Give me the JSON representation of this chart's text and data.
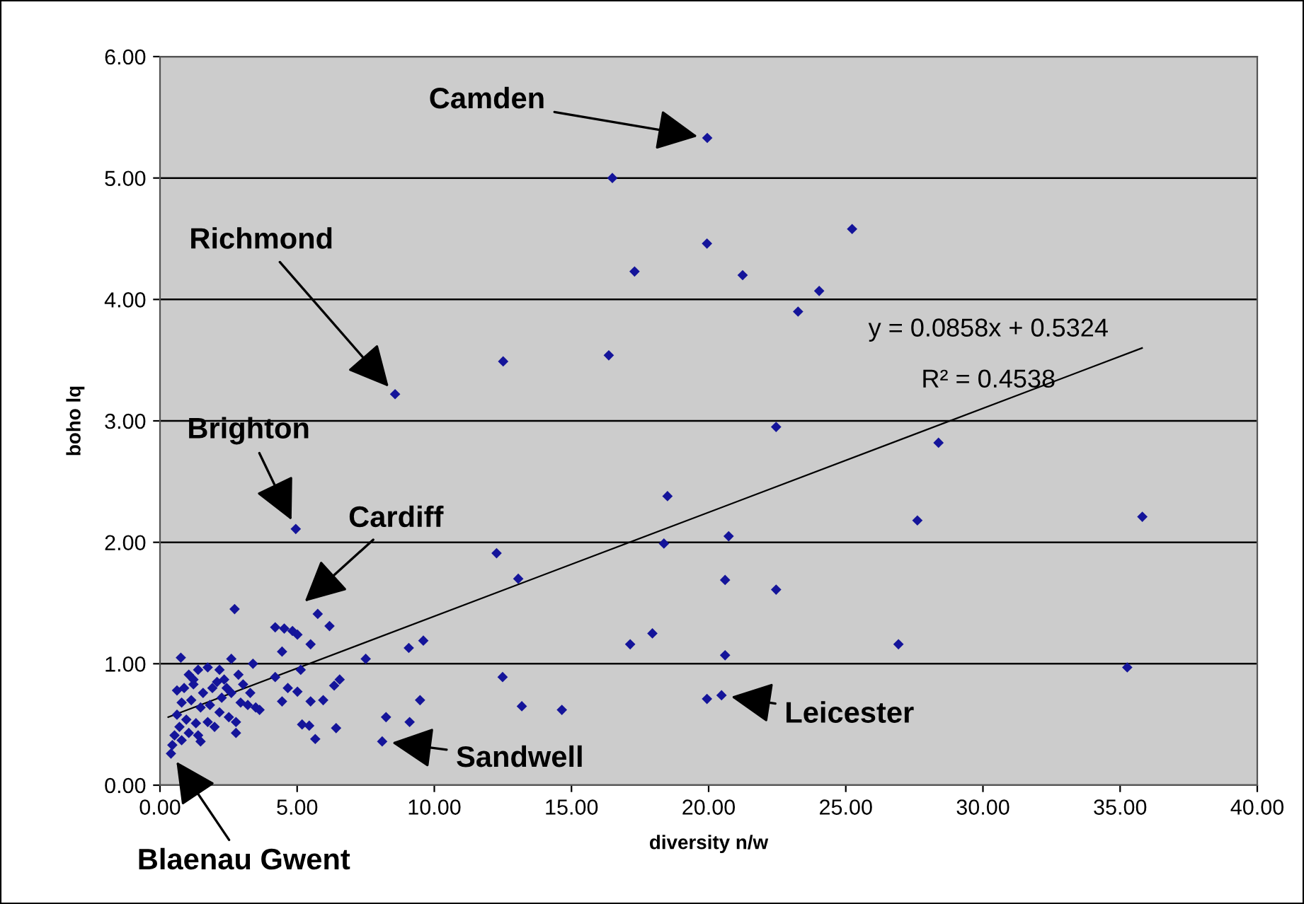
{
  "chart_data": {
    "type": "scatter",
    "xlabel": "diversity n/w",
    "ylabel": "boho lq",
    "xlim": [
      0,
      40
    ],
    "ylim": [
      0,
      6
    ],
    "xticks": [
      {
        "value": 0,
        "label": "0.00"
      },
      {
        "value": 5,
        "label": "5.00"
      },
      {
        "value": 10,
        "label": "10.00"
      },
      {
        "value": 15,
        "label": "15.00"
      },
      {
        "value": 20,
        "label": "20.00"
      },
      {
        "value": 25,
        "label": "25.00"
      },
      {
        "value": 30,
        "label": "30.00"
      },
      {
        "value": 35,
        "label": "35.00"
      },
      {
        "value": 40,
        "label": "40.00"
      }
    ],
    "yticks": [
      {
        "value": 0,
        "label": "0.00"
      },
      {
        "value": 1,
        "label": "1.00"
      },
      {
        "value": 2,
        "label": "2.00"
      },
      {
        "value": 3,
        "label": "3.00"
      },
      {
        "value": 4,
        "label": "4.00"
      },
      {
        "value": 5,
        "label": "5.00"
      },
      {
        "value": 6,
        "label": "6.00"
      }
    ],
    "grid": "y",
    "legend": false,
    "series": [
      {
        "color": "#14149a",
        "marker": "diamond",
        "x": [
          19.95,
          16.49,
          25.23,
          19.94,
          17.3,
          21.24,
          24.03,
          23.26,
          12.51,
          16.36,
          22.46,
          28.38,
          8.57,
          4.95,
          18.5,
          27.61,
          35.81,
          12.27,
          18.37,
          20.73,
          13.06,
          20.6,
          22.46,
          17.14,
          17.95,
          20.6,
          26.92,
          35.26,
          12.49,
          13.19,
          14.65,
          19.94,
          20.47,
          2.72,
          4.2,
          4.53,
          4.83,
          5.01,
          5.75,
          6.18,
          5.49,
          4.45,
          7.5,
          9.07,
          9.6,
          0.76,
          2.6,
          3.39,
          5.13,
          4.2,
          6.55,
          6.35,
          4.66,
          5.01,
          4.45,
          5.49,
          5.95,
          9.48,
          8.24,
          9.1,
          5.18,
          5.44,
          6.42,
          5.66,
          8.1,
          3.49,
          2.77,
          2.77,
          1.48,
          0.4,
          1.05,
          1.39,
          1.74,
          2.17,
          2.34,
          2.86,
          3.03,
          3.29,
          3.63,
          0.88,
          1.22,
          1.57,
          1.91,
          2.25,
          2.6,
          2.94,
          0.79,
          1.14,
          1.48,
          1.82,
          2.17,
          2.51,
          0.62,
          0.96,
          1.31,
          1.74,
          0.71,
          1.05,
          0.53,
          0.79,
          0.45,
          1.22,
          2.08,
          3.2,
          2.43,
          1.39,
          0.62,
          1.99
        ],
        "values": [
          5.33,
          5.0,
          4.58,
          4.46,
          4.23,
          4.2,
          4.07,
          3.9,
          3.49,
          3.54,
          2.95,
          2.82,
          3.22,
          2.11,
          2.38,
          2.18,
          2.21,
          1.91,
          1.99,
          2.05,
          1.7,
          1.69,
          1.61,
          1.16,
          1.25,
          1.07,
          1.16,
          0.97,
          0.89,
          0.65,
          0.62,
          0.71,
          0.74,
          1.45,
          1.3,
          1.29,
          1.27,
          1.24,
          1.41,
          1.31,
          1.16,
          1.1,
          1.04,
          1.13,
          1.19,
          1.05,
          1.04,
          1.0,
          0.95,
          0.89,
          0.87,
          0.82,
          0.8,
          0.77,
          0.69,
          0.69,
          0.7,
          0.7,
          0.56,
          0.52,
          0.5,
          0.49,
          0.47,
          0.38,
          0.36,
          0.64,
          0.52,
          0.43,
          0.36,
          0.26,
          0.91,
          0.95,
          0.97,
          0.95,
          0.87,
          0.91,
          0.83,
          0.76,
          0.62,
          0.8,
          0.83,
          0.76,
          0.8,
          0.72,
          0.76,
          0.68,
          0.68,
          0.7,
          0.64,
          0.66,
          0.6,
          0.56,
          0.58,
          0.54,
          0.51,
          0.52,
          0.48,
          0.43,
          0.41,
          0.37,
          0.33,
          0.87,
          0.85,
          0.66,
          0.8,
          0.41,
          0.78,
          0.48
        ]
      },
      {
        "type": "line",
        "color": "#000000",
        "line_style": "solid",
        "x": [
          0.3,
          35.8
        ],
        "values": [
          0.56,
          3.6
        ]
      }
    ],
    "annotations": [
      {
        "text": "Camden",
        "x": 19.95,
        "y": 5.33
      },
      {
        "text": "Richmond",
        "x": 8.57,
        "y": 3.22
      },
      {
        "text": "Brighton",
        "x": 4.95,
        "y": 2.11
      },
      {
        "text": "Leicester",
        "x": 20.47,
        "y": 0.74
      },
      {
        "text": "Sandwell",
        "x": 8.1,
        "y": 0.36
      },
      {
        "text": "Blaenau Gwent",
        "x": 0.4,
        "y": 0.26
      },
      "Cardiff",
      "y = 0.0858x + 0.5324",
      "R² = 0.4538"
    ]
  }
}
